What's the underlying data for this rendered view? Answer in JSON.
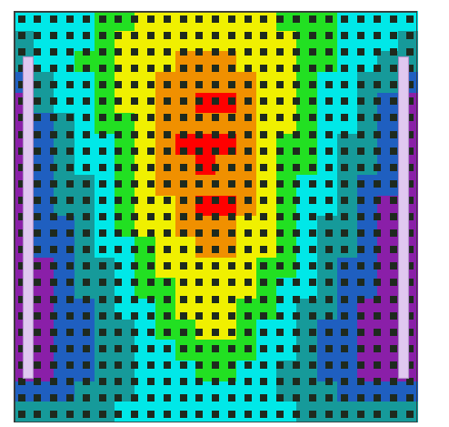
{
  "chart_data": {
    "type": "heatmap",
    "tick_labels": false,
    "colors": [
      "#8a1fa8",
      "#1f5fc0",
      "#169a9a",
      "#00e8e8",
      "#22e022",
      "#f0f000",
      "#f09000",
      "#ff0000"
    ],
    "cells": [
      [
        3,
        3,
        3,
        3,
        4,
        4,
        5,
        5,
        5,
        5,
        5,
        5,
        5,
        4,
        4,
        4,
        3,
        3,
        3,
        3
      ],
      [
        2,
        3,
        3,
        3,
        4,
        5,
        5,
        5,
        5,
        5,
        5,
        5,
        5,
        5,
        4,
        4,
        3,
        3,
        3,
        2
      ],
      [
        2,
        3,
        3,
        4,
        4,
        5,
        5,
        5,
        6,
        6,
        6,
        5,
        5,
        5,
        4,
        4,
        3,
        3,
        2,
        2
      ],
      [
        1,
        2,
        3,
        3,
        4,
        5,
        5,
        6,
        6,
        6,
        6,
        6,
        5,
        5,
        4,
        3,
        3,
        2,
        2,
        1
      ],
      [
        0,
        2,
        3,
        3,
        4,
        5,
        5,
        6,
        6,
        7,
        7,
        6,
        5,
        5,
        4,
        3,
        3,
        2,
        1,
        0
      ],
      [
        0,
        1,
        2,
        3,
        4,
        4,
        5,
        6,
        6,
        6,
        6,
        6,
        5,
        5,
        4,
        3,
        3,
        2,
        1,
        0
      ],
      [
        0,
        1,
        2,
        3,
        3,
        4,
        5,
        6,
        7,
        7,
        7,
        6,
        5,
        4,
        4,
        3,
        2,
        2,
        1,
        0
      ],
      [
        0,
        1,
        2,
        3,
        3,
        4,
        5,
        6,
        6,
        7,
        6,
        6,
        5,
        4,
        4,
        3,
        2,
        2,
        1,
        0
      ],
      [
        0,
        1,
        2,
        2,
        3,
        4,
        5,
        6,
        6,
        6,
        6,
        6,
        5,
        4,
        3,
        3,
        2,
        1,
        1,
        0
      ],
      [
        0,
        1,
        2,
        2,
        3,
        4,
        5,
        5,
        6,
        7,
        7,
        6,
        5,
        4,
        3,
        3,
        2,
        1,
        0,
        0
      ],
      [
        0,
        1,
        1,
        2,
        3,
        4,
        5,
        5,
        6,
        6,
        6,
        5,
        5,
        4,
        3,
        2,
        2,
        1,
        0,
        0
      ],
      [
        0,
        1,
        1,
        2,
        3,
        3,
        4,
        5,
        5,
        6,
        6,
        5,
        5,
        4,
        3,
        2,
        2,
        1,
        0,
        0
      ],
      [
        0,
        0,
        1,
        2,
        2,
        3,
        4,
        5,
        5,
        5,
        5,
        5,
        4,
        4,
        3,
        2,
        1,
        1,
        0,
        0
      ],
      [
        0,
        0,
        1,
        2,
        2,
        3,
        4,
        4,
        5,
        5,
        5,
        5,
        4,
        3,
        3,
        2,
        1,
        1,
        0,
        0
      ],
      [
        0,
        0,
        1,
        1,
        2,
        3,
        3,
        4,
        5,
        5,
        5,
        4,
        4,
        3,
        2,
        2,
        1,
        0,
        0,
        0
      ],
      [
        0,
        0,
        1,
        1,
        2,
        2,
        3,
        4,
        4,
        5,
        5,
        4,
        3,
        3,
        2,
        1,
        1,
        0,
        0,
        0
      ],
      [
        0,
        0,
        1,
        1,
        2,
        2,
        3,
        3,
        4,
        4,
        4,
        4,
        3,
        3,
        2,
        1,
        1,
        0,
        0,
        0
      ],
      [
        0,
        0,
        1,
        1,
        2,
        2,
        3,
        3,
        3,
        4,
        4,
        3,
        3,
        2,
        2,
        1,
        1,
        0,
        0,
        0
      ],
      [
        1,
        1,
        1,
        2,
        2,
        2,
        3,
        3,
        3,
        3,
        3,
        3,
        3,
        2,
        2,
        2,
        1,
        1,
        1,
        1
      ],
      [
        2,
        2,
        2,
        2,
        2,
        3,
        3,
        3,
        3,
        3,
        3,
        3,
        3,
        3,
        2,
        2,
        2,
        2,
        2,
        2
      ]
    ]
  }
}
